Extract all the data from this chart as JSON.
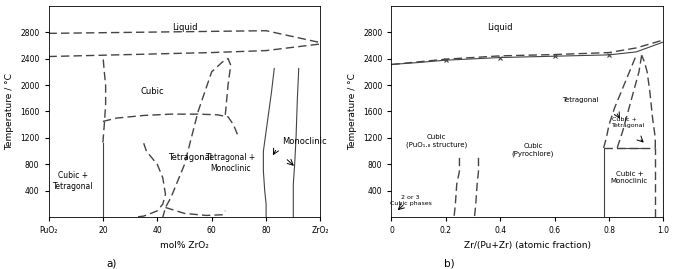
{
  "fig_width": 6.75,
  "fig_height": 2.69,
  "dpi": 100,
  "line_color": "#444444",
  "lw_dash": 1.0,
  "lw_solid": 0.8,
  "dash_pattern": [
    6,
    3
  ],
  "left": {
    "xlabel": "mol% ZrO₂",
    "ylabel": "Temperature / °C",
    "xlim": [
      0,
      100
    ],
    "ylim": [
      0,
      3200
    ],
    "xticks": [
      0,
      20,
      40,
      60,
      80,
      100
    ],
    "xticklabels": [
      "PuO₂",
      "20",
      "40",
      "60",
      "80",
      "ZrO₂"
    ],
    "yticks": [
      400,
      800,
      1200,
      1600,
      2000,
      2400,
      2800
    ]
  },
  "right": {
    "xlabel": "Zr/(Pu+Zr) (atomic fraction)",
    "ylabel": "Temperature / °C",
    "xlim": [
      0,
      1.0
    ],
    "ylim": [
      0,
      3200
    ],
    "xticks": [
      0,
      0.2,
      0.4,
      0.6,
      0.8,
      1.0
    ],
    "xticklabels": [
      "0",
      "0.2",
      "0.4",
      "0.6",
      "0.8",
      "1.0"
    ],
    "yticks": [
      400,
      800,
      1200,
      1600,
      2000,
      2400,
      2800
    ]
  }
}
